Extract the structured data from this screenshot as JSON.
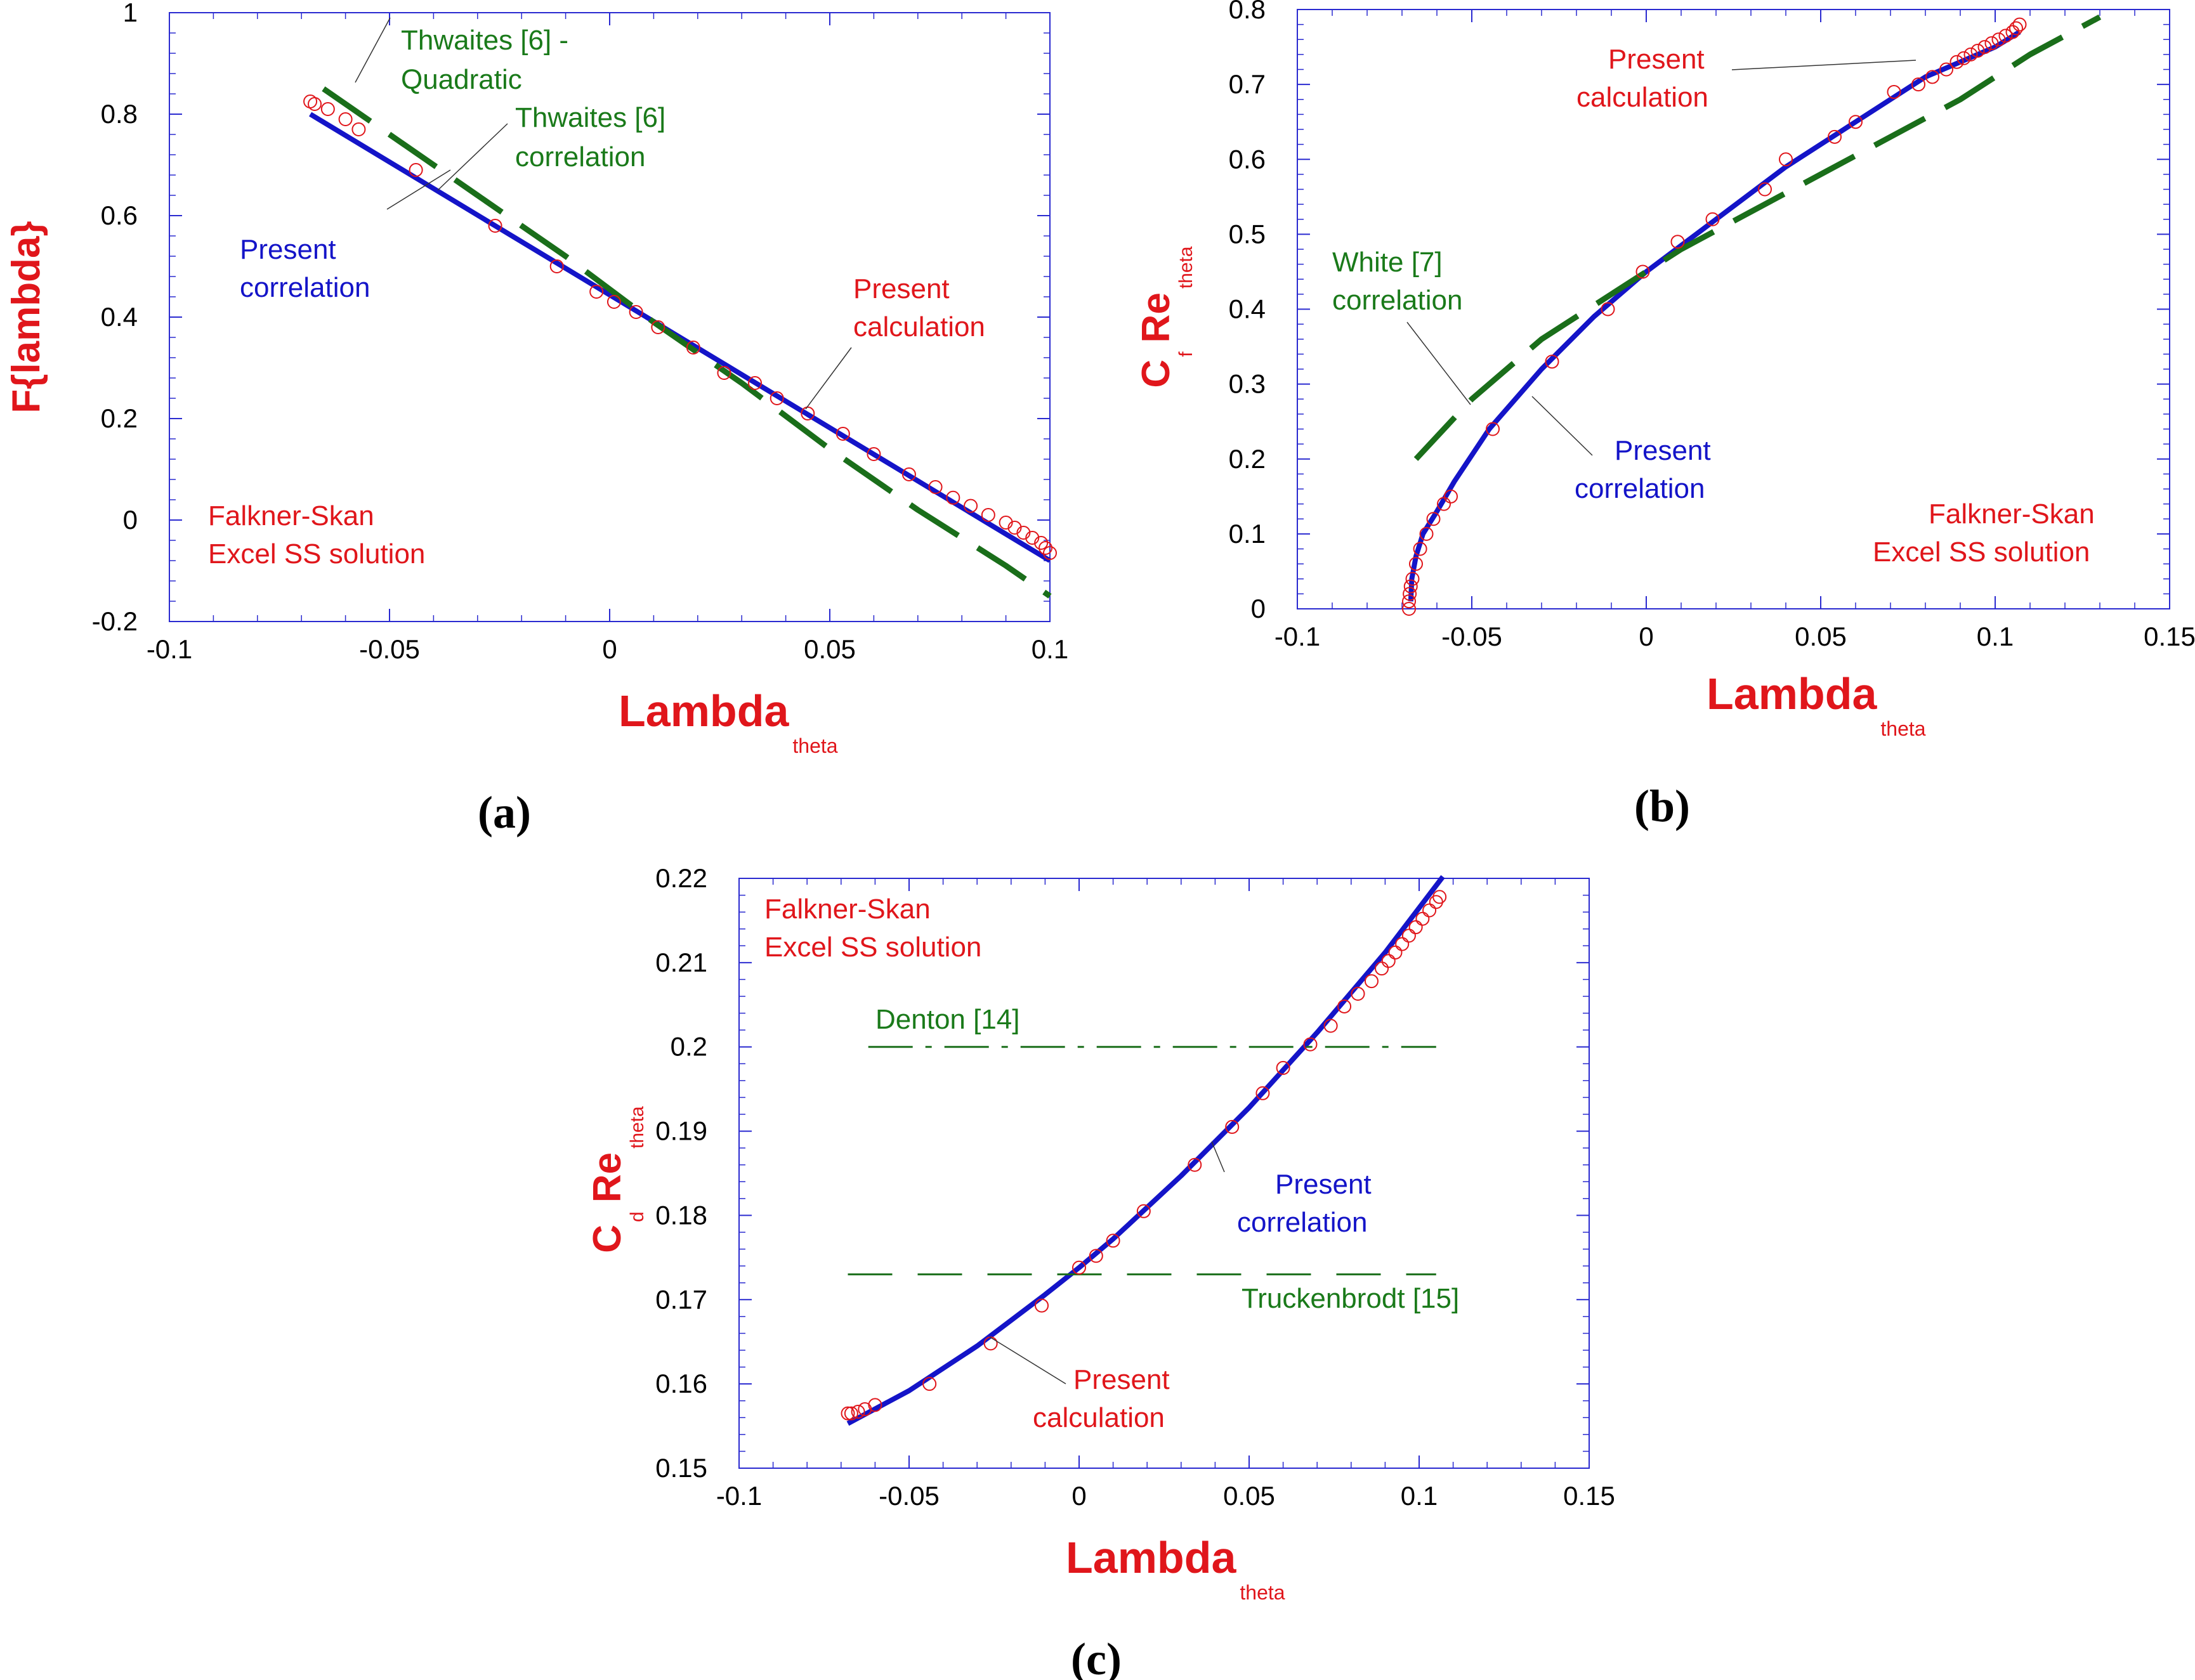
{
  "colors": {
    "frame": "#2a2ad0",
    "present_correlation": "#1414c8",
    "calculation": "#e0161b",
    "literature": "#1a6e1a",
    "label": "#e0161b"
  },
  "chart_data": [
    {
      "id": "a",
      "type": "line",
      "panel_label": "(a)",
      "xlabel": "Lambda",
      "xlabel_sub": "theta",
      "ylabel": "F{lambda}",
      "ylabel_sub": "",
      "xlim": [
        -0.1,
        0.1
      ],
      "ylim": [
        -0.2,
        1
      ],
      "xticks": [
        -0.1,
        -0.05,
        0,
        0.05,
        0.1
      ],
      "yticks": [
        -0.2,
        0,
        0.2,
        0.4,
        0.6,
        0.8,
        1
      ],
      "xtick_labels": [
        "-0.1",
        "-0.05",
        "0",
        "0.05",
        "0.1"
      ],
      "ytick_labels": [
        "-0.2",
        "0",
        "0.2",
        "0.4",
        "0.6",
        "0.8",
        "1"
      ],
      "series": [
        {
          "name": "Present correlation",
          "style": "solid",
          "color": "#1414c8",
          "x": [
            -0.068,
            0.1
          ],
          "y": [
            0.8,
            -0.08
          ]
        },
        {
          "name": "Thwaites [6] - Quadratic",
          "style": "dashed",
          "color": "#1a6e1a",
          "x": [
            -0.065,
            -0.05,
            -0.03,
            -0.01,
            0.01,
            0.03,
            0.05,
            0.07,
            0.09,
            0.1
          ],
          "y": [
            0.85,
            0.76,
            0.64,
            0.52,
            0.39,
            0.27,
            0.14,
            0.02,
            -0.09,
            -0.15
          ]
        },
        {
          "name": "Present calculation",
          "style": "markers",
          "color": "#e0161b",
          "x": [
            -0.068,
            -0.067,
            -0.064,
            -0.06,
            -0.057,
            -0.044,
            -0.026,
            -0.012,
            -0.003,
            0.001,
            0.006,
            0.011,
            0.019,
            0.026,
            0.033,
            0.038,
            0.045,
            0.053,
            0.06,
            0.068,
            0.074,
            0.078,
            0.082,
            0.086,
            0.09,
            0.092,
            0.094,
            0.096,
            0.098,
            0.099,
            0.1
          ],
          "y": [
            0.825,
            0.82,
            0.81,
            0.79,
            0.77,
            0.69,
            0.58,
            0.5,
            0.45,
            0.43,
            0.41,
            0.38,
            0.34,
            0.29,
            0.27,
            0.24,
            0.21,
            0.17,
            0.13,
            0.09,
            0.065,
            0.044,
            0.028,
            0.01,
            -0.005,
            -0.015,
            -0.025,
            -0.035,
            -0.045,
            -0.055,
            -0.065
          ]
        }
      ],
      "annotations": [
        {
          "id": "thw-quad-1",
          "text": "Thwaites [6] -",
          "color": "green"
        },
        {
          "id": "thw-quad-2",
          "text": "Quadratic",
          "color": "green"
        },
        {
          "id": "thw-corr-1",
          "text": "Thwaites [6]",
          "color": "green"
        },
        {
          "id": "thw-corr-2",
          "text": "correlation",
          "color": "green"
        },
        {
          "id": "pcorr-1",
          "text": "Present",
          "color": "blue"
        },
        {
          "id": "pcorr-2",
          "text": "correlation",
          "color": "blue"
        },
        {
          "id": "pcalc-1",
          "text": "Present",
          "color": "red"
        },
        {
          "id": "pcalc-2",
          "text": "calculation",
          "color": "red"
        },
        {
          "id": "fs-1",
          "text": "Falkner-Skan",
          "color": "red"
        },
        {
          "id": "fs-2",
          "text": "Excel SS solution",
          "color": "red"
        }
      ]
    },
    {
      "id": "b",
      "type": "line",
      "panel_label": "(b)",
      "xlabel": "Lambda",
      "xlabel_sub": "theta",
      "ylabel": "C  Re",
      "ylabel_c": "C",
      "ylabel_re": "Re",
      "ylabel_c_sub": "f",
      "ylabel_sub": "theta",
      "xlim": [
        -0.1,
        0.15
      ],
      "ylim": [
        0,
        0.8
      ],
      "xticks": [
        -0.1,
        -0.05,
        0,
        0.05,
        0.1,
        0.15
      ],
      "yticks": [
        0,
        0.1,
        0.2,
        0.3,
        0.4,
        0.5,
        0.6,
        0.7,
        0.8
      ],
      "xtick_labels": [
        "-0.1",
        "-0.05",
        "0",
        "0.05",
        "0.1",
        "0.15"
      ],
      "ytick_labels": [
        "0",
        "0.1",
        "0.2",
        "0.3",
        "0.4",
        "0.5",
        "0.6",
        "0.7",
        "0.8"
      ],
      "series": [
        {
          "name": "Present correlation",
          "style": "solid",
          "color": "#1414c8",
          "x": [
            -0.0675,
            -0.0672,
            -0.066,
            -0.064,
            -0.06,
            -0.055,
            -0.045,
            -0.03,
            -0.015,
            0,
            0.02,
            0.04,
            0.06,
            0.08,
            0.1,
            0.107
          ],
          "y": [
            0.01,
            0.04,
            0.07,
            0.1,
            0.13,
            0.17,
            0.24,
            0.32,
            0.39,
            0.45,
            0.52,
            0.59,
            0.65,
            0.71,
            0.75,
            0.77
          ]
        },
        {
          "name": "White [7] correlation",
          "style": "dashed",
          "color": "#1a6e1a",
          "x": [
            -0.066,
            -0.05,
            -0.03,
            -0.01,
            0.01,
            0.03,
            0.05,
            0.07,
            0.09,
            0.11,
            0.13
          ],
          "y": [
            0.2,
            0.28,
            0.36,
            0.42,
            0.48,
            0.53,
            0.58,
            0.63,
            0.68,
            0.74,
            0.79
          ]
        },
        {
          "name": "Present calculation",
          "style": "markers",
          "color": "#e0161b",
          "x": [
            -0.068,
            -0.068,
            -0.0678,
            -0.0675,
            -0.067,
            -0.066,
            -0.0648,
            -0.063,
            -0.061,
            -0.058,
            -0.056,
            -0.044,
            -0.027,
            -0.011,
            -0.001,
            0.009,
            0.019,
            0.034,
            0.04,
            0.054,
            0.06,
            0.071,
            0.078,
            0.082,
            0.086,
            0.089,
            0.091,
            0.093,
            0.095,
            0.097,
            0.099,
            0.101,
            0.103,
            0.105,
            0.106,
            0.107
          ],
          "y": [
            0.0,
            0.01,
            0.02,
            0.03,
            0.04,
            0.06,
            0.08,
            0.1,
            0.12,
            0.14,
            0.15,
            0.24,
            0.33,
            0.4,
            0.45,
            0.49,
            0.52,
            0.56,
            0.6,
            0.63,
            0.65,
            0.69,
            0.7,
            0.71,
            0.72,
            0.73,
            0.735,
            0.74,
            0.745,
            0.75,
            0.755,
            0.76,
            0.765,
            0.77,
            0.775,
            0.78
          ]
        }
      ],
      "annotations": [
        {
          "id": "pcalc-1",
          "text": "Present",
          "color": "red"
        },
        {
          "id": "pcalc-2",
          "text": "calculation",
          "color": "red"
        },
        {
          "id": "white-1",
          "text": "White [7]",
          "color": "green"
        },
        {
          "id": "white-2",
          "text": "correlation",
          "color": "green"
        },
        {
          "id": "pcorr-1",
          "text": "Present",
          "color": "blue"
        },
        {
          "id": "pcorr-2",
          "text": "correlation",
          "color": "blue"
        },
        {
          "id": "fs-1",
          "text": "Falkner-Skan",
          "color": "red"
        },
        {
          "id": "fs-2",
          "text": "Excel SS  solution",
          "color": "red"
        }
      ]
    },
    {
      "id": "c",
      "type": "line",
      "panel_label": "(c)",
      "xlabel": "Lambda",
      "xlabel_sub": "theta",
      "ylabel": "C  Re",
      "ylabel_c": "C",
      "ylabel_re": "Re",
      "ylabel_c_sub": "d",
      "ylabel_sub": "theta",
      "xlim": [
        -0.1,
        0.15
      ],
      "ylim": [
        0.15,
        0.22
      ],
      "xticks": [
        -0.1,
        -0.05,
        0,
        0.05,
        0.1,
        0.15
      ],
      "yticks": [
        0.15,
        0.16,
        0.17,
        0.18,
        0.19,
        0.2,
        0.21,
        0.22
      ],
      "xtick_labels": [
        "-0.1",
        "-0.05",
        "0",
        "0.05",
        "0.1",
        "0.15"
      ],
      "ytick_labels": [
        "0.15",
        "0.16",
        "0.17",
        "0.18",
        "0.19",
        "0.2",
        "0.21",
        "0.22"
      ],
      "series": [
        {
          "name": "Present correlation",
          "style": "solid",
          "color": "#1414c8",
          "x": [
            -0.068,
            -0.05,
            -0.03,
            -0.01,
            0,
            0.01,
            0.03,
            0.05,
            0.07,
            0.09,
            0.107
          ],
          "y": [
            0.1553,
            0.1592,
            0.1645,
            0.1706,
            0.1738,
            0.1772,
            0.1847,
            0.1928,
            0.2017,
            0.2112,
            0.2202
          ]
        },
        {
          "name": "Denton [14]",
          "style": "dashdot",
          "color": "#1a6e1a",
          "x": [
            -0.062,
            0.105
          ],
          "y": [
            0.2,
            0.2
          ]
        },
        {
          "name": "Truckenbrodt [15]",
          "style": "dashed",
          "color": "#1a6e1a",
          "x": [
            -0.068,
            0.105
          ],
          "y": [
            0.173,
            0.173
          ]
        },
        {
          "name": "Present calculation",
          "style": "markers",
          "color": "#e0161b",
          "x": [
            -0.068,
            -0.067,
            -0.065,
            -0.063,
            -0.06,
            -0.044,
            -0.026,
            -0.011,
            0,
            0.005,
            0.01,
            0.019,
            0.034,
            0.045,
            0.054,
            0.06,
            0.068,
            0.074,
            0.078,
            0.082,
            0.086,
            0.089,
            0.091,
            0.093,
            0.095,
            0.097,
            0.099,
            0.101,
            0.103,
            0.105,
            0.106
          ],
          "y": [
            0.1565,
            0.1565,
            0.1567,
            0.157,
            0.1575,
            0.16,
            0.1648,
            0.1693,
            0.1738,
            0.1752,
            0.177,
            0.1805,
            0.186,
            0.1905,
            0.1945,
            0.1975,
            0.2003,
            0.2025,
            0.2048,
            0.2063,
            0.2078,
            0.2093,
            0.2102,
            0.2112,
            0.2122,
            0.2132,
            0.2142,
            0.2152,
            0.2162,
            0.2172,
            0.2178
          ]
        }
      ],
      "annotations": [
        {
          "id": "fs-1",
          "text": "Falkner-Skan",
          "color": "red"
        },
        {
          "id": "fs-2",
          "text": "Excel SS solution",
          "color": "red"
        },
        {
          "id": "denton",
          "text": "Denton [14]",
          "color": "green"
        },
        {
          "id": "pcorr-1",
          "text": "Present",
          "color": "blue"
        },
        {
          "id": "pcorr-2",
          "text": "correlation",
          "color": "blue"
        },
        {
          "id": "truck",
          "text": "Truckenbrodt [15]",
          "color": "green"
        },
        {
          "id": "pcalc-1",
          "text": "Present",
          "color": "red"
        },
        {
          "id": "pcalc-2",
          "text": "calculation",
          "color": "red"
        }
      ]
    }
  ]
}
